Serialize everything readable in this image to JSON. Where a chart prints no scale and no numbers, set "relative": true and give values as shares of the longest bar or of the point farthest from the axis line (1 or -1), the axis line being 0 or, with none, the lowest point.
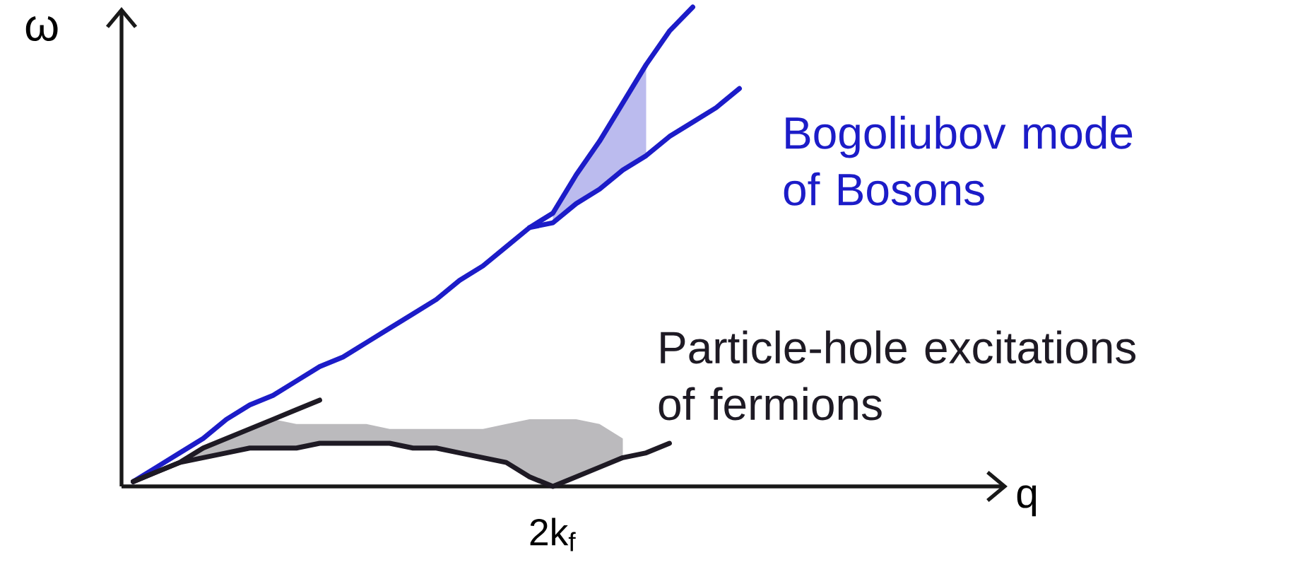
{
  "chart_data": {
    "type": "line",
    "relative": true,
    "xlabel": "q",
    "ylabel": "ω",
    "legend": false,
    "marker": "none",
    "line_style": "solid",
    "annotations": [
      "2k$_{f}$"
    ],
    "categories": [
      null,
      null,
      null,
      null,
      null,
      null,
      null,
      null,
      null,
      null,
      null,
      null,
      null,
      null,
      null,
      null,
      null,
      null,
      null,
      null,
      null,
      null,
      null,
      null,
      null,
      null,
      null,
      null,
      null,
      null,
      null,
      null,
      null,
      null,
      null,
      null,
      null,
      null
    ],
    "series": [
      {
        "color": "#1c1cc8",
        "values": [
          0.01,
          0.04,
          0.07,
          0.1,
          0.14,
          0.17,
          0.19,
          0.22,
          0.25,
          0.27,
          0.3,
          0.33,
          0.36,
          0.39,
          0.43,
          0.46,
          0.5,
          0.54,
          0.57,
          0.65,
          0.72,
          0.8,
          0.88,
          0.95,
          1.0,
          null,
          null,
          null,
          null,
          null,
          null,
          null,
          null,
          null,
          null,
          null,
          null,
          null
        ]
      },
      {
        "name": "Bogoliubov mode of Bosons",
        "color": "#1c1cc8",
        "values": [
          null,
          null,
          null,
          null,
          null,
          null,
          null,
          null,
          null,
          null,
          null,
          null,
          null,
          null,
          null,
          null,
          null,
          0.54,
          0.55,
          0.59,
          0.62,
          0.66,
          0.69,
          0.73,
          0.76,
          0.79,
          0.83,
          null,
          null,
          null,
          null,
          null,
          null,
          null,
          null,
          null,
          null,
          null
        ],
        "lower": [
          null,
          null,
          null,
          null,
          null,
          null,
          null,
          null,
          null,
          null,
          null,
          null,
          null,
          null,
          null,
          null,
          null,
          null,
          0.55,
          0.59,
          0.62,
          0.66,
          0.69,
          null,
          null,
          null,
          null,
          null,
          null,
          null,
          null,
          null,
          null,
          null,
          null,
          null,
          null,
          null
        ],
        "upper": [
          null,
          null,
          null,
          null,
          null,
          null,
          null,
          null,
          null,
          null,
          null,
          null,
          null,
          null,
          null,
          null,
          null,
          null,
          0.57,
          0.65,
          0.72,
          0.8,
          0.88,
          null,
          null,
          null,
          null,
          null,
          null,
          null,
          null,
          null,
          null,
          null,
          null,
          null,
          null,
          null
        ]
      },
      {
        "name": "Particle-hole excitations of fermions",
        "color": "#1e1a24",
        "values": [
          0.01,
          0.03,
          0.05,
          0.06,
          0.07,
          0.08,
          0.08,
          0.08,
          0.09,
          0.09,
          0.09,
          0.09,
          0.08,
          0.08,
          0.07,
          0.06,
          0.05,
          0.02,
          0,
          0.02,
          0.04,
          0.06,
          0.07,
          0.09,
          null,
          null,
          null,
          null,
          null,
          null,
          null,
          null,
          null,
          null,
          null,
          null,
          null,
          null
        ],
        "lower": [
          0.01,
          0.03,
          0.05,
          0.06,
          0.07,
          0.08,
          0.08,
          0.08,
          0.09,
          0.09,
          0.09,
          0.09,
          0.08,
          0.08,
          0.07,
          0.06,
          0.05,
          0.02,
          0,
          0.02,
          0.04,
          0.06,
          null,
          null,
          null,
          null,
          null,
          null,
          null,
          null,
          null,
          null,
          null,
          null,
          null,
          null,
          null,
          null
        ],
        "upper": [
          0.01,
          0.03,
          0.05,
          0.08,
          0.1,
          0.12,
          0.14,
          0.13,
          0.13,
          0.13,
          0.13,
          0.12,
          0.12,
          0.12,
          0.12,
          0.12,
          0.13,
          0.14,
          0.14,
          0.14,
          0.13,
          0.1,
          null,
          null,
          null,
          null,
          null,
          null,
          null,
          null,
          null,
          null,
          null,
          null,
          null,
          null,
          null,
          null
        ]
      },
      {
        "color": "#1e1a24",
        "values": [
          0.01,
          0.03,
          0.05,
          0.08,
          0.1,
          0.12,
          0.14,
          0.16,
          0.18,
          null,
          null,
          null,
          null,
          null,
          null,
          null,
          null,
          null,
          null,
          null,
          null,
          null,
          null,
          null,
          null,
          null,
          null,
          null,
          null,
          null,
          null,
          null,
          null,
          null,
          null,
          null,
          null,
          null
        ]
      }
    ]
  }
}
